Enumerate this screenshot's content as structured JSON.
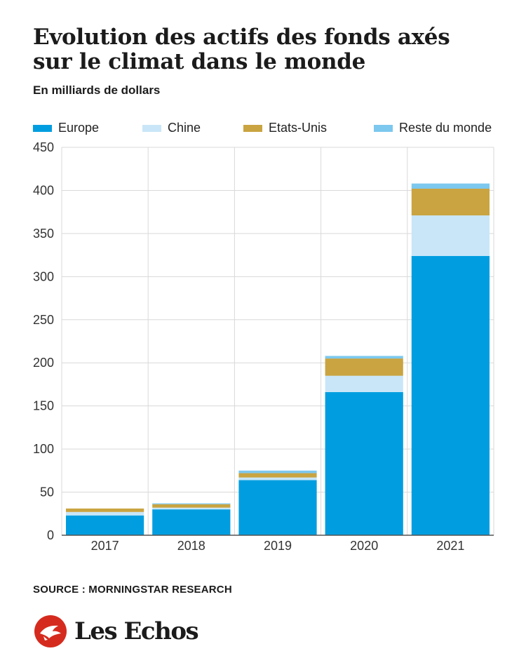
{
  "title": "Evolution des actifs des fonds axés sur le climat dans le monde",
  "subtitle": "En milliards de dollars",
  "source": "SOURCE : MORNINGSTAR RESEARCH",
  "brand": "Les Echos",
  "colors": {
    "europe": "#009ee0",
    "chine": "#c9e6f8",
    "etats_unis": "#c9a441",
    "reste": "#7cc8ee",
    "grid": "#d9d9d9",
    "axis": "#555555",
    "brand_red": "#d52b1e"
  },
  "legend": [
    {
      "label": "Europe",
      "color": "#009ee0"
    },
    {
      "label": "Chine",
      "color": "#c9e6f8"
    },
    {
      "label": "Etats-Unis",
      "color": "#c9a441"
    },
    {
      "label": "Reste du monde",
      "color": "#7cc8ee"
    }
  ],
  "chart_data": {
    "type": "bar",
    "stacked": true,
    "categories": [
      "2017",
      "2018",
      "2019",
      "2020",
      "2021"
    ],
    "series": [
      {
        "name": "Europe",
        "color": "#009ee0",
        "values": [
          23,
          30,
          64,
          166,
          324
        ]
      },
      {
        "name": "Chine",
        "color": "#c9e6f8",
        "values": [
          4,
          2,
          3,
          19,
          47
        ]
      },
      {
        "name": "Etats-Unis",
        "color": "#c9a441",
        "values": [
          4,
          4,
          5,
          20,
          31
        ]
      },
      {
        "name": "Reste du monde",
        "color": "#7cc8ee",
        "values": [
          0,
          1,
          3,
          3,
          6
        ]
      }
    ],
    "ylim": [
      0,
      450
    ],
    "yticks": [
      0,
      50,
      100,
      150,
      200,
      250,
      300,
      350,
      400,
      450
    ],
    "grid": true,
    "legend_position": "top",
    "xlabel": "",
    "ylabel": ""
  }
}
